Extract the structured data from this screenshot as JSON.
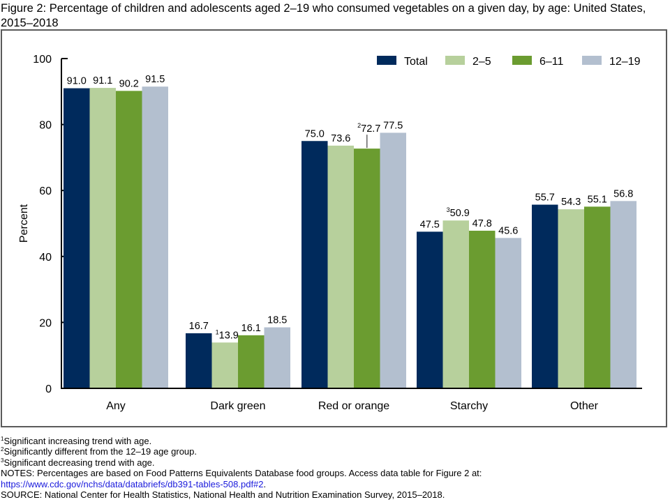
{
  "title": "Figure 2: Percentage of children and adolescents aged 2–19 who consumed vegetables on a given day, by age: United States, 2015–2018",
  "chart_data": {
    "type": "bar",
    "title": "Figure 2: Percentage of children and adolescents aged 2–19 who consumed vegetables on a given day, by age: United States, 2015–2018",
    "xlabel": "",
    "ylabel": "Percent",
    "ylim": [
      0,
      100
    ],
    "yticks": [
      0,
      20,
      40,
      60,
      80,
      100
    ],
    "grid": false,
    "legend_position": "top-right",
    "categories": [
      "Any",
      "Dark green",
      "Red or orange",
      "Starchy",
      "Other"
    ],
    "series": [
      {
        "name": "Total",
        "color": "#002a5c",
        "values": [
          91.0,
          16.7,
          75.0,
          47.5,
          55.7
        ],
        "labels": [
          "91.0",
          "16.7",
          "75.0",
          "47.5",
          "55.7"
        ],
        "footnotes": [
          "",
          "",
          "",
          "",
          ""
        ]
      },
      {
        "name": "2–5",
        "color": "#b7d09c",
        "values": [
          91.1,
          13.9,
          73.6,
          50.9,
          54.3
        ],
        "labels": [
          "91.1",
          "13.9",
          "73.6",
          "50.9",
          "54.3"
        ],
        "footnotes": [
          "",
          "1",
          "",
          "3",
          ""
        ]
      },
      {
        "name": "6–11",
        "color": "#6b9c30",
        "values": [
          90.2,
          16.1,
          72.7,
          47.8,
          55.1
        ],
        "labels": [
          "90.2",
          "16.1",
          "72.7",
          "47.8",
          "55.1"
        ],
        "footnotes": [
          "",
          "",
          "2",
          "",
          ""
        ]
      },
      {
        "name": "12–19",
        "color": "#b3bfcf",
        "values": [
          91.5,
          18.5,
          77.5,
          45.6,
          56.8
        ],
        "labels": [
          "91.5",
          "18.5",
          "77.5",
          "45.6",
          "56.8"
        ],
        "footnotes": [
          "",
          "",
          "",
          "",
          ""
        ]
      }
    ]
  },
  "notes": {
    "fn1_mark": "1",
    "fn1": "Significant increasing trend with age.",
    "fn2_mark": "2",
    "fn2": "Significantly different from the 12–19 age group.",
    "fn3_mark": "3",
    "fn3": "Significant decreasing trend with age.",
    "notes": "NOTES: Percentages are based on Food Patterns Equivalents Database food groups. Access data table for Figure 2 at:",
    "link": "https://www.cdc.gov/nchs/data/databriefs/db391-tables-508.pdf#2",
    "link_suffix": ".",
    "source": "SOURCE: National Center for Health Statistics, National Health and Nutrition Examination Survey, 2015–2018."
  }
}
